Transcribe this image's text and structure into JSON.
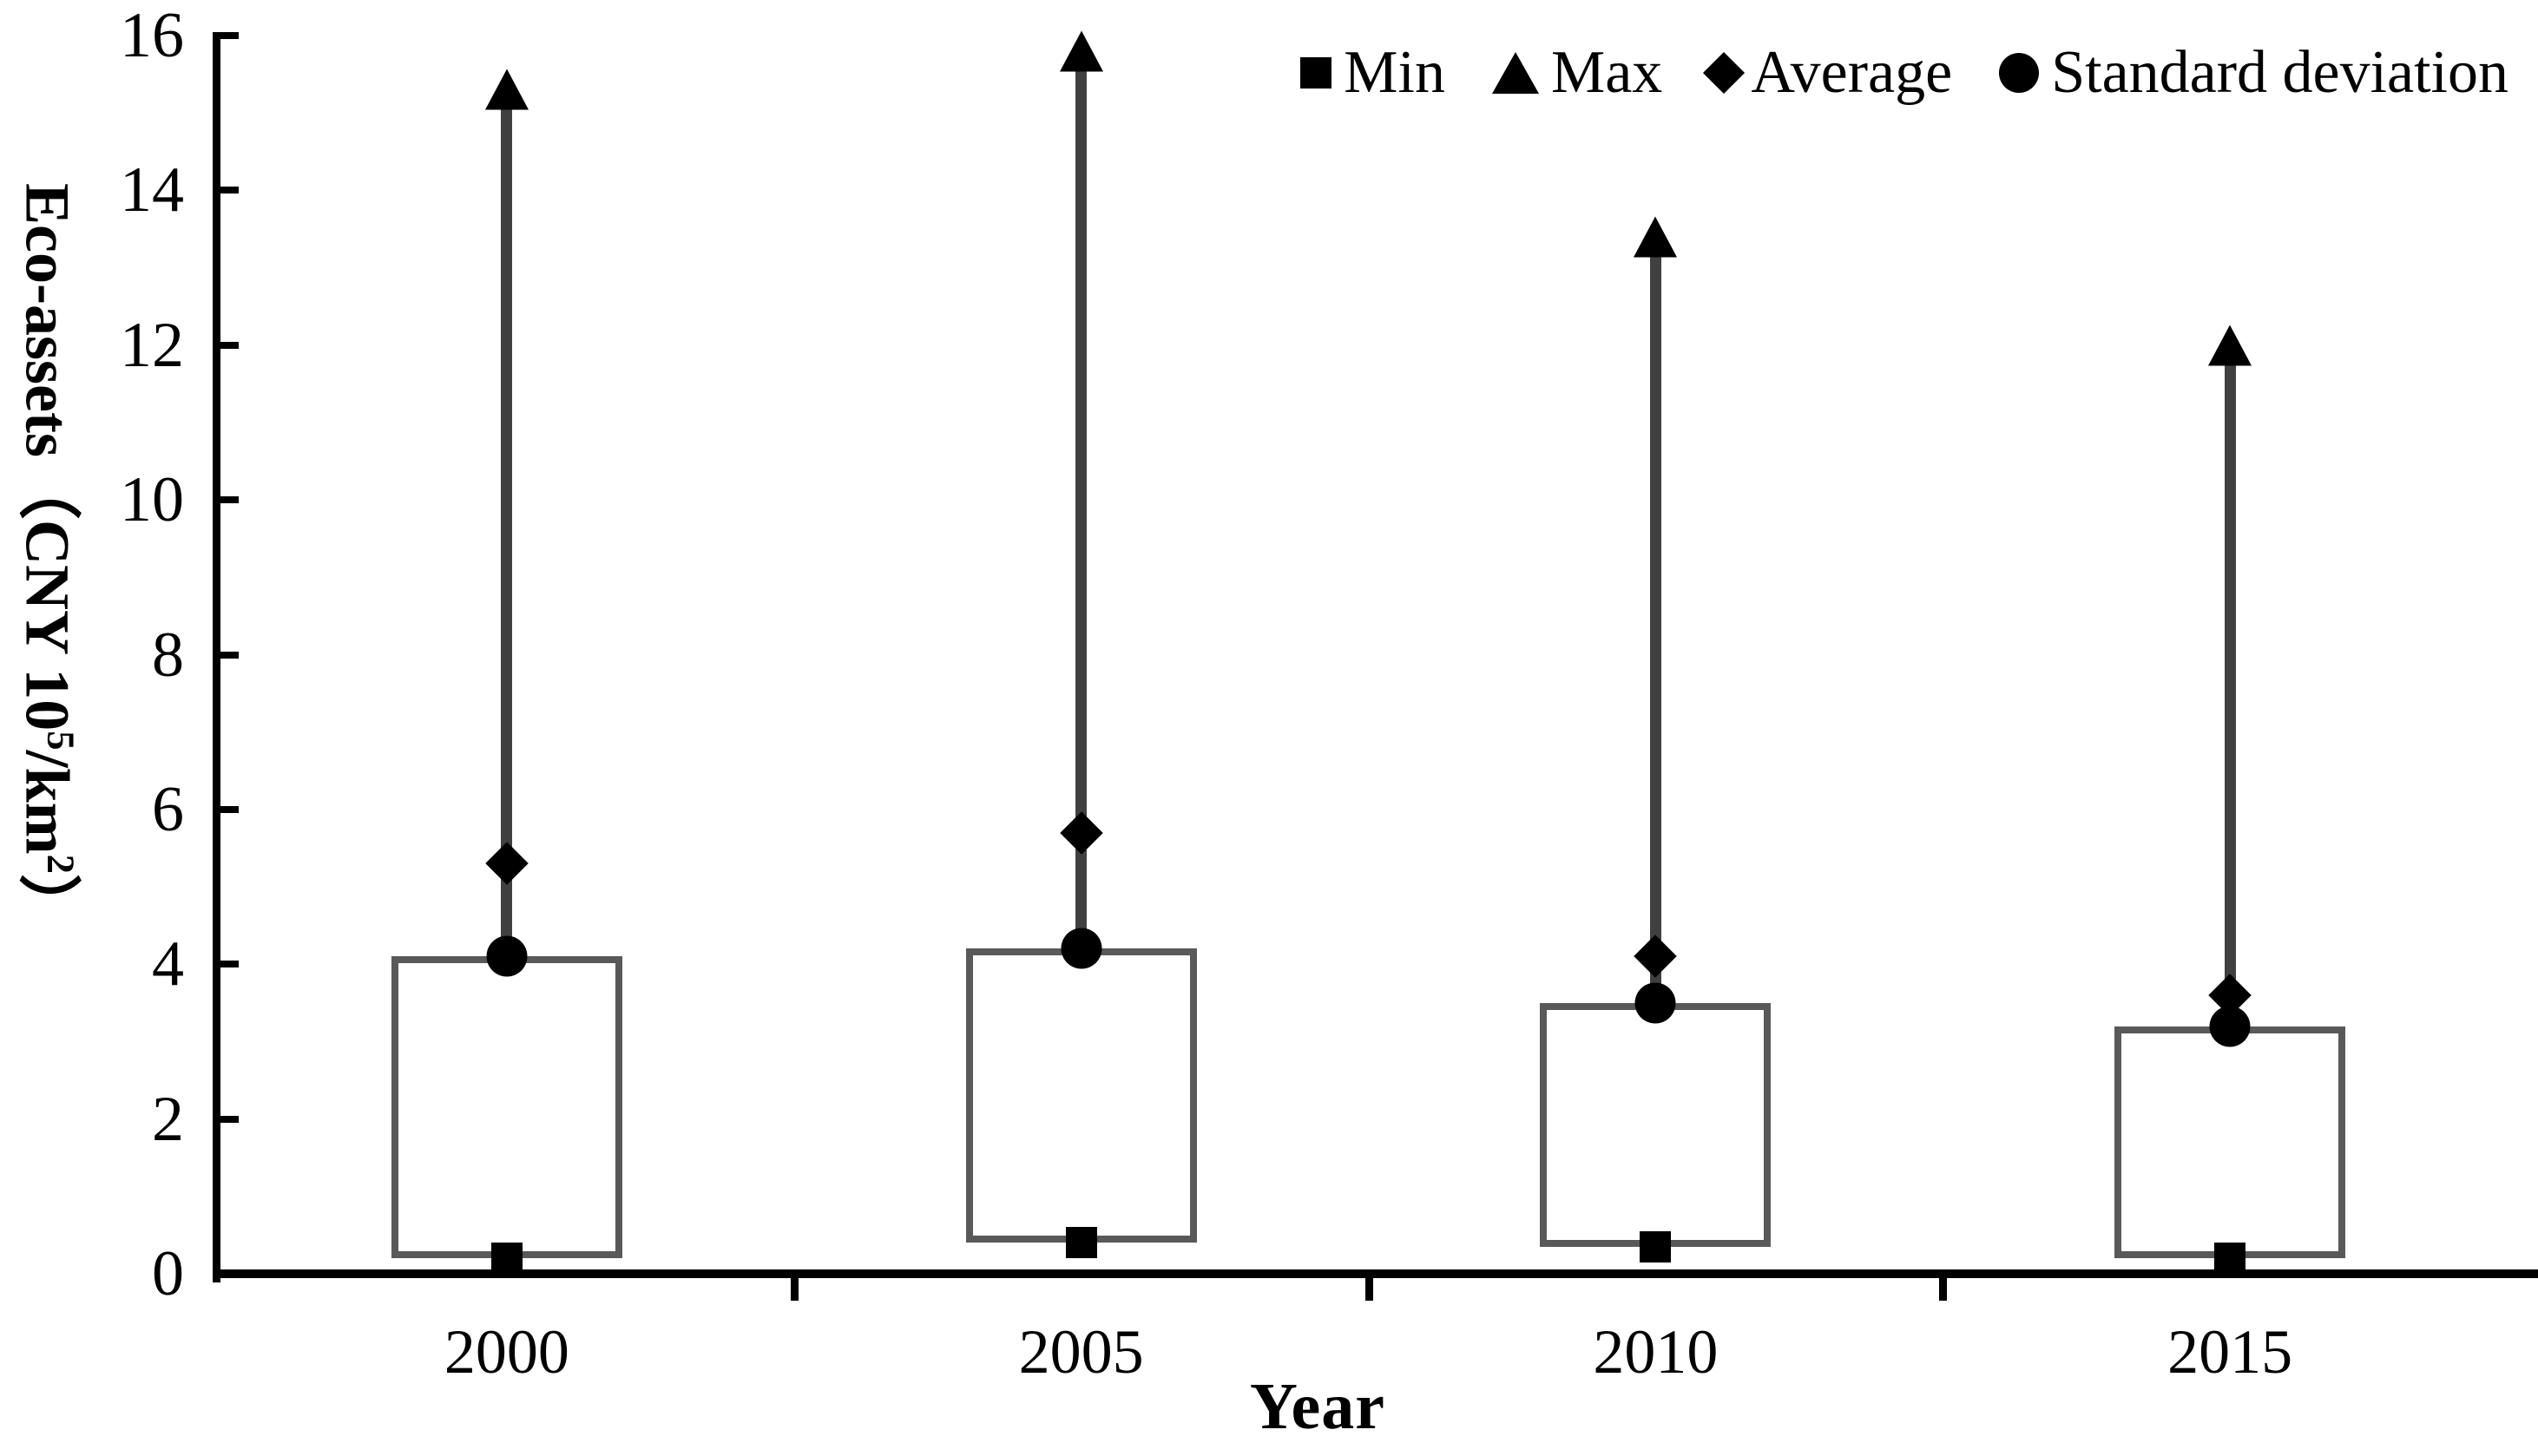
{
  "chart_data": {
    "type": "scatter",
    "variant": "min-max range plot: gray box from Min to Standard deviation, gray stem from box top to Max marker",
    "title": "",
    "xlabel": "Year",
    "ylabel": "Eco-assets（CNY 10⁵/km²）",
    "ylabel_parts": {
      "prefix": "Eco-assets（CNY 10",
      "sup1": "5",
      "mid": "/km",
      "sup2": "2",
      "suffix": "）"
    },
    "categories": [
      "2000",
      "2005",
      "2010",
      "2015"
    ],
    "series": [
      {
        "name": "Min",
        "marker": "square",
        "values": [
          0.2,
          0.4,
          0.35,
          0.2
        ]
      },
      {
        "name": "Max",
        "marker": "triangle",
        "values": [
          15.3,
          15.8,
          13.4,
          12.0
        ]
      },
      {
        "name": "Average",
        "marker": "diamond",
        "values": [
          5.3,
          5.7,
          4.1,
          3.6
        ]
      },
      {
        "name": "Standard deviation",
        "marker": "circle",
        "values": [
          4.1,
          4.2,
          3.5,
          3.2
        ]
      }
    ],
    "boxes": {
      "note": "rectangle per category spanning Min (bottom) to Standard deviation (top)",
      "ranges": [
        [
          0.2,
          4.1
        ],
        [
          0.4,
          4.2
        ],
        [
          0.35,
          3.5
        ],
        [
          0.2,
          3.2
        ]
      ]
    },
    "stems": {
      "note": "vertical line per category from Standard deviation (box top) up to Max"
    },
    "ylim": [
      0,
      16
    ],
    "yticks": [
      0,
      2,
      4,
      6,
      8,
      10,
      12,
      14,
      16
    ],
    "grid": false,
    "legend_position": "top-right",
    "colors": {
      "marker": "#000000",
      "box_border": "#595959",
      "stem": "#404040",
      "axis": "#000000",
      "background": "#ffffff",
      "text": "#000000"
    }
  }
}
